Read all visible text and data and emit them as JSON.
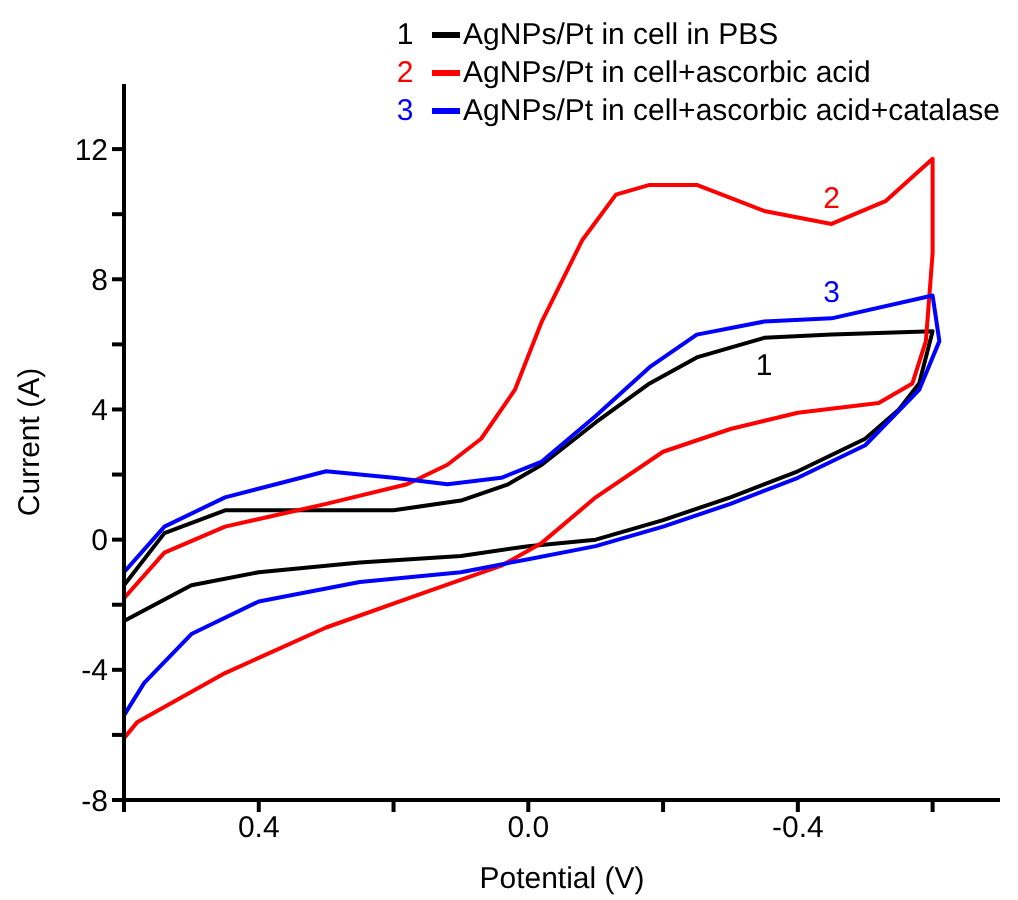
{
  "chart_data": {
    "type": "line",
    "xlabel": "Potential (V)",
    "ylabel": "Current (A)",
    "xlim": [
      0.6,
      -0.7
    ],
    "xticks": [
      {
        "value": 0.6,
        "label": null
      },
      0.4,
      {
        "value": 0.2,
        "label": null
      },
      {
        "value": 0,
        "label": "0.0"
      },
      {
        "value": -0.2,
        "label": null
      },
      -0.4,
      {
        "value": -0.6,
        "label": null
      }
    ],
    "ylim": [
      -8,
      14
    ],
    "yticks": [
      -8,
      {
        "value": -6,
        "label": null
      },
      -4,
      {
        "value": -2,
        "label": null
      },
      0,
      {
        "value": 2,
        "label": null
      },
      4,
      {
        "value": 6,
        "label": null
      },
      8,
      {
        "value": 10,
        "label": null
      },
      12
    ],
    "grid": false,
    "legend": "top right",
    "line_style": "solid",
    "series": [
      {
        "name": "AgNPs/Pt in cell in PBS",
        "color": "#000000",
        "x": [
          0.6,
          0.54,
          0.45,
          0.35,
          0.2,
          0.1,
          0.03,
          -0.02,
          -0.1,
          -0.18,
          -0.25,
          -0.35,
          -0.45,
          -0.6,
          -0.58,
          -0.55,
          -0.5,
          -0.4,
          -0.3,
          -0.2,
          -0.1,
          0,
          0.1,
          0.25,
          0.4,
          0.5,
          0.6
        ],
        "values": [
          -1.4,
          0.2,
          0.9,
          0.9,
          0.9,
          1.2,
          1.7,
          2.3,
          3.6,
          4.8,
          5.6,
          6.2,
          6.3,
          6.4,
          4.8,
          4.0,
          3.1,
          2.1,
          1.3,
          0.6,
          0,
          -0.2,
          -0.5,
          -0.7,
          -1.0,
          -1.4,
          -2.5
        ]
      },
      {
        "name": "AgNPs/Pt in cell+ascorbic acid",
        "color": "#ff0000",
        "x": [
          0.6,
          0.54,
          0.45,
          0.3,
          0.18,
          0.12,
          0.07,
          0.02,
          -0.02,
          -0.08,
          -0.13,
          -0.18,
          -0.25,
          -0.35,
          -0.45,
          -0.53,
          -0.6,
          -0.6,
          -0.59,
          -0.57,
          -0.52,
          -0.4,
          -0.3,
          -0.2,
          -0.1,
          -0.02,
          0.04,
          0.15,
          0.3,
          0.45,
          0.58,
          0.6
        ],
        "values": [
          -1.8,
          -0.4,
          0.4,
          1.1,
          1.7,
          2.3,
          3.1,
          4.6,
          6.7,
          9.2,
          10.6,
          10.9,
          10.9,
          10.1,
          9.7,
          10.4,
          11.7,
          8.8,
          6.1,
          4.8,
          4.2,
          3.9,
          3.4,
          2.7,
          1.3,
          -0.1,
          -0.8,
          -1.6,
          -2.7,
          -4.1,
          -5.6,
          -6.1
        ]
      },
      {
        "name": "AgNPs/Pt in cell+ascorbic acid+catalase",
        "color": "#0000ff",
        "x": [
          0.6,
          0.54,
          0.45,
          0.3,
          0.2,
          0.12,
          0.04,
          -0.02,
          -0.1,
          -0.18,
          -0.25,
          -0.35,
          -0.45,
          -0.6,
          -0.61,
          -0.58,
          -0.5,
          -0.4,
          -0.3,
          -0.2,
          -0.1,
          0,
          0.1,
          0.25,
          0.4,
          0.5,
          0.57,
          0.6
        ],
        "values": [
          -1.0,
          0.4,
          1.3,
          2.1,
          1.9,
          1.7,
          1.9,
          2.4,
          3.8,
          5.3,
          6.3,
          6.7,
          6.8,
          7.5,
          6.1,
          4.6,
          2.9,
          1.9,
          1.1,
          0.4,
          -0.2,
          -0.6,
          -1.0,
          -1.3,
          -1.9,
          -2.9,
          -4.4,
          -5.4
        ]
      }
    ],
    "annotations": [
      "1",
      "2",
      "3"
    ]
  }
}
